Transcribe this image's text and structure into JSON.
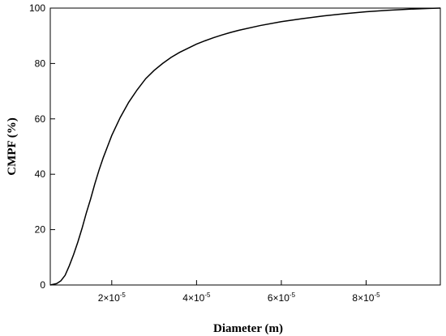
{
  "chart_data": {
    "type": "line",
    "title": "",
    "xlabel": "Diameter (m)",
    "ylabel": "CMPF (%)",
    "xlim": [
      5.5e-06,
      9.75e-05
    ],
    "ylim": [
      0,
      100
    ],
    "x_scale": "linear",
    "y_scale": "linear",
    "grid": false,
    "legend": "none",
    "x_ticks": [
      {
        "value": 2e-05,
        "mantissa": "2",
        "times": "×",
        "base": "10",
        "exponent": "-5"
      },
      {
        "value": 4e-05,
        "mantissa": "4",
        "times": "×",
        "base": "10",
        "exponent": "-5"
      },
      {
        "value": 6e-05,
        "mantissa": "6",
        "times": "×",
        "base": "10",
        "exponent": "-5"
      },
      {
        "value": 8e-05,
        "mantissa": "8",
        "times": "×",
        "base": "10",
        "exponent": "-5"
      }
    ],
    "y_ticks": [
      {
        "value": 0,
        "label": "0"
      },
      {
        "value": 20,
        "label": "20"
      },
      {
        "value": 40,
        "label": "40"
      },
      {
        "value": 60,
        "label": "60"
      },
      {
        "value": 80,
        "label": "80"
      },
      {
        "value": 100,
        "label": "100"
      }
    ],
    "series": [
      {
        "color": "#000000",
        "x": [
          5.5e-06,
          7e-06,
          8e-06,
          9e-06,
          1e-05,
          1.1e-05,
          1.2e-05,
          1.3e-05,
          1.4e-05,
          1.5e-05,
          1.6e-05,
          1.7e-05,
          1.8e-05,
          1.9e-05,
          2e-05,
          2.2e-05,
          2.4e-05,
          2.6e-05,
          2.8e-05,
          3e-05,
          3.2e-05,
          3.4e-05,
          3.6e-05,
          3.8e-05,
          4e-05,
          4.2e-05,
          4.4e-05,
          4.6e-05,
          4.8e-05,
          5e-05,
          5.5e-05,
          6e-05,
          6.5e-05,
          7e-05,
          7.5e-05,
          8e-05,
          8.5e-05,
          9e-05,
          9.5e-05,
          9.75e-05
        ],
        "y": [
          0,
          0.5,
          1.5,
          3.5,
          7,
          11,
          15.5,
          20.5,
          26,
          31,
          36.5,
          41.5,
          46,
          50,
          54,
          60.5,
          66,
          70.5,
          74.5,
          77.5,
          80,
          82.2,
          84,
          85.5,
          87,
          88.2,
          89.3,
          90.3,
          91.2,
          92,
          93.7,
          95.1,
          96.2,
          97.2,
          98,
          98.7,
          99.2,
          99.6,
          99.9,
          100
        ]
      }
    ]
  }
}
